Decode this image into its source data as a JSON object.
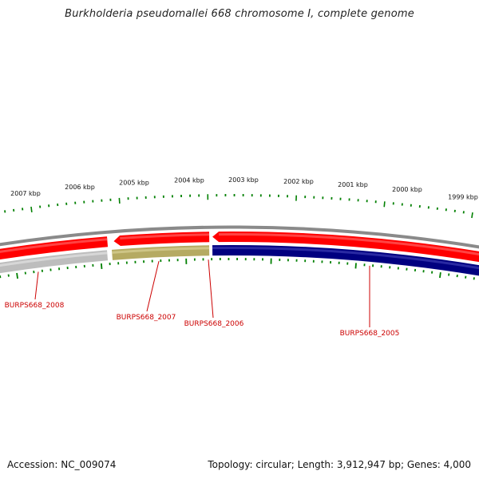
{
  "title": "Burkholderia pseudomallei 668 chromosome I, complete genome",
  "footer": {
    "accession": "Accession: NC_009074",
    "summary": "Topology: circular; Length: 3,912,947 bp; Genes: 4,000"
  },
  "colors": {
    "backbone": "#8a8a8a",
    "forward_gene": "#ff0000",
    "reverse_gray": "#bdbdbd",
    "reverse_olive": "#b5aa62",
    "reverse_navy": "#000080",
    "tick": "#008000",
    "label": "#cc0000"
  },
  "scale_ticks": [
    "2007 kbp",
    "2006 kbp",
    "2005 kbp",
    "2004 kbp",
    "2003 kbp",
    "2002 kbp",
    "2001 kbp",
    "2000 kbp",
    "1999 kbp"
  ],
  "genes": [
    {
      "label": "BURPS668_2008",
      "strand": "reverse",
      "color_key": "reverse_gray"
    },
    {
      "label": "BURPS668_2007",
      "strand": "reverse",
      "color_key": "reverse_olive"
    },
    {
      "label": "BURPS668_2006",
      "strand": "forward",
      "color_key": "forward_gene"
    },
    {
      "label": "BURPS668_2005",
      "strand": "reverse",
      "color_key": "reverse_navy"
    }
  ],
  "forward_features": [
    {
      "strand": "forward",
      "color_key": "forward_gene"
    },
    {
      "strand": "forward",
      "color_key": "forward_gene"
    },
    {
      "strand": "forward",
      "color_key": "forward_gene"
    }
  ]
}
